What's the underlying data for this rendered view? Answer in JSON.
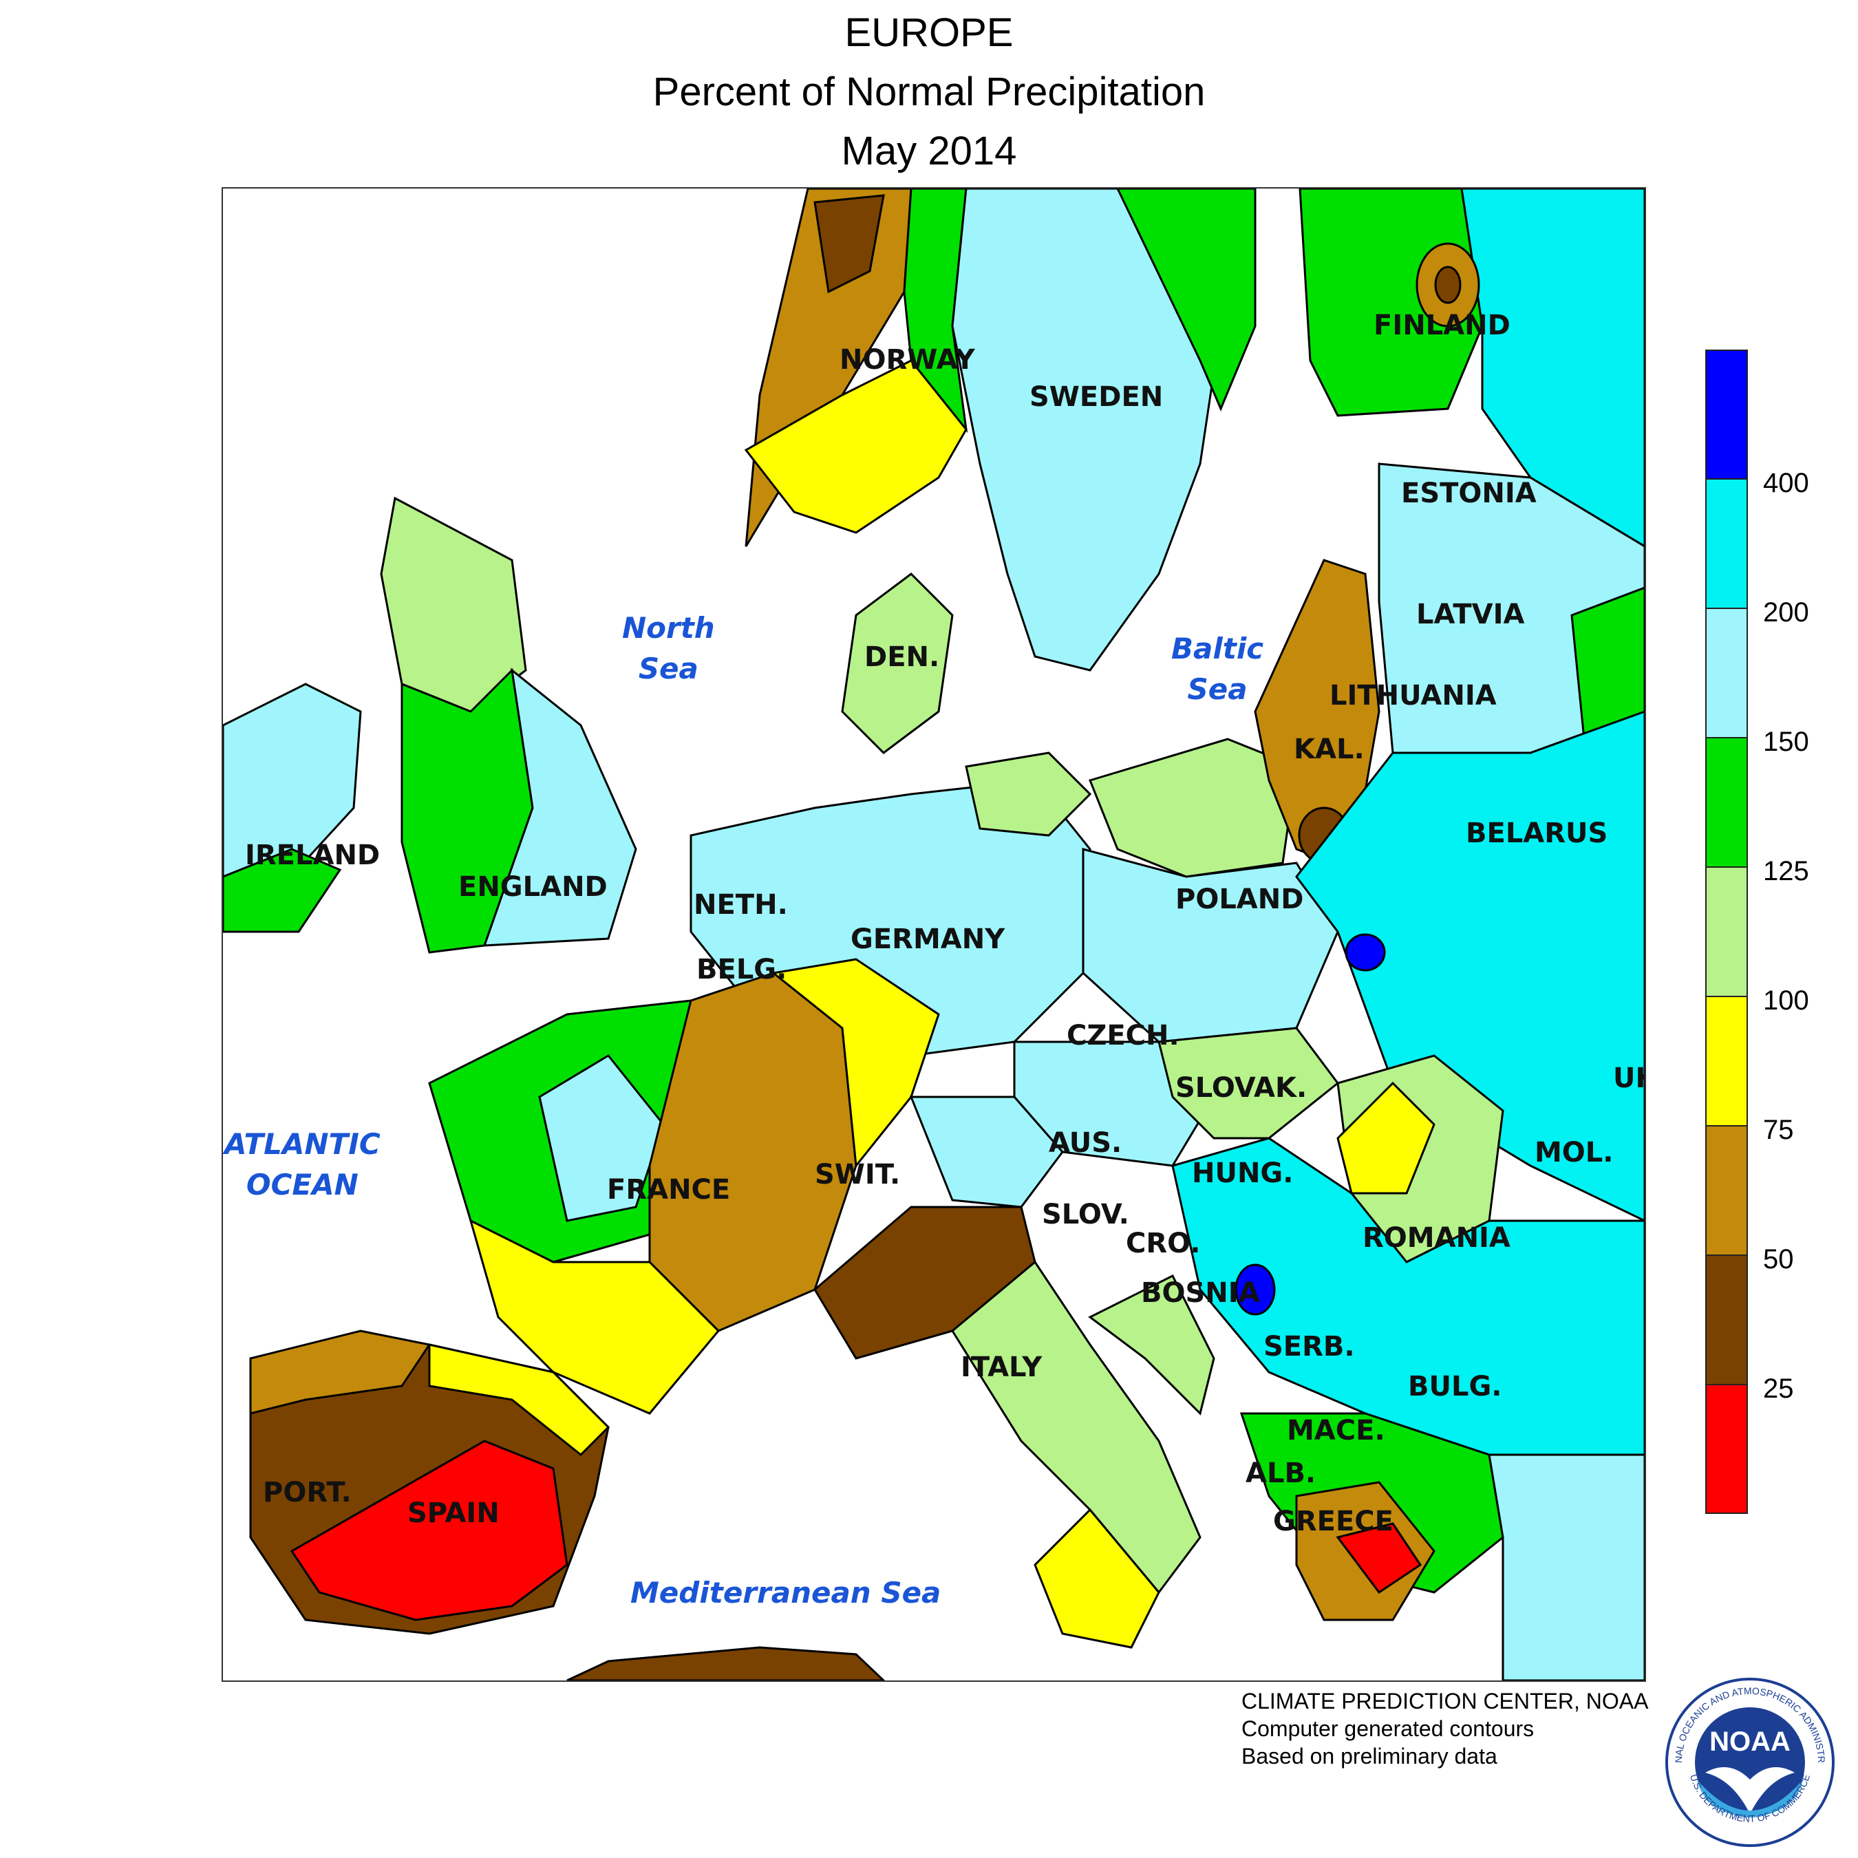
{
  "header": {
    "region": "EUROPE",
    "title": "Percent of Normal Precipitation",
    "period": "May 2014"
  },
  "map": {
    "countries": {
      "norway": "NORWAY",
      "sweden": "SWEDEN",
      "finland": "FINLAND",
      "estonia": "ESTONIA",
      "latvia": "LATVIA",
      "lithuania": "LITHUANIA",
      "kal": "KAL.",
      "belarus": "BELARUS",
      "ireland": "IRELAND",
      "england": "ENGLAND",
      "den": "DEN.",
      "neth": "NETH.",
      "belg": "BELG.",
      "germany": "GERMANY",
      "poland": "POLAND",
      "czech": "CZECH.",
      "slovak": "SLOVAK.",
      "uk": "UK",
      "france": "FRANCE",
      "swit": "SWIT.",
      "aus": "AUS.",
      "hung": "HUNG.",
      "mol": "MOL.",
      "slov": "SLOV.",
      "cro": "CRO.",
      "romania": "ROMANIA",
      "bosnia": "BOSNIA",
      "serb": "SERB.",
      "italy": "ITALY",
      "bulg": "BULG.",
      "mace": "MACE.",
      "alb": "ALB.",
      "greece": "GREECE",
      "port": "PORT.",
      "spain": "SPAIN"
    },
    "seas": {
      "north_sea": [
        "North",
        "Sea"
      ],
      "baltic_sea": [
        "Baltic",
        "Sea"
      ],
      "atlantic": [
        "ATLANTIC",
        "OCEAN"
      ],
      "mediterranean": "Mediterranean Sea"
    }
  },
  "legend": {
    "bins": [
      {
        "label": "above 400",
        "color": "#0000ff"
      },
      {
        "label": "200–400",
        "color": "#00f2f2"
      },
      {
        "label": "150–200",
        "color": "#9ff5fb"
      },
      {
        "label": "125–150",
        "color": "#00e000"
      },
      {
        "label": "100–125",
        "color": "#b7f28b"
      },
      {
        "label": "75–100",
        "color": "#ffff00"
      },
      {
        "label": "50–75",
        "color": "#c38a0b"
      },
      {
        "label": "25–50",
        "color": "#7a4200"
      },
      {
        "label": "below 25",
        "color": "#ff0000"
      }
    ],
    "ticks": [
      "400",
      "200",
      "150",
      "125",
      "100",
      "75",
      "50",
      "25"
    ]
  },
  "credits": {
    "line1": "CLIMATE PREDICTION CENTER, NOAA",
    "line2": "Computer generated contours",
    "line3": "Based on preliminary data"
  },
  "logo": {
    "text": "NOAA",
    "ring_top": "NATIONAL OCEANIC AND ATMOSPHERIC ADMINISTRATION",
    "ring_bottom": "U.S. DEPARTMENT OF COMMERCE"
  }
}
